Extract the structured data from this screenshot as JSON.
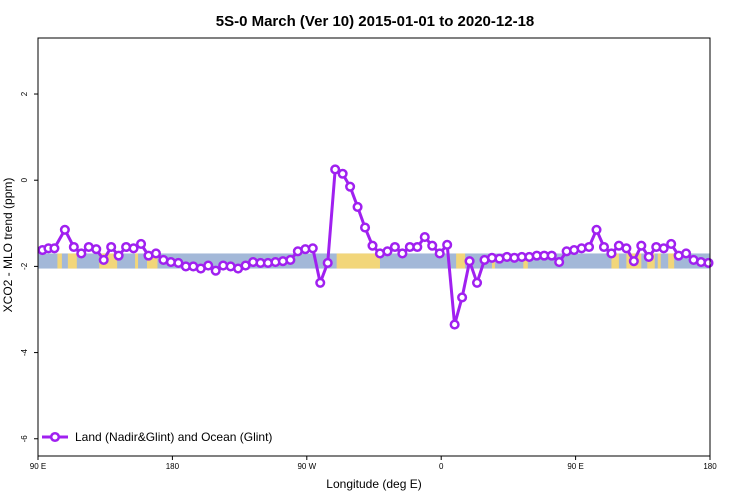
{
  "chart_data": {
    "type": "line",
    "title": "5S-0 March (Ver 10)   2015-01-01 to 2020-12-18",
    "xlabel": "Longitude (deg E)",
    "ylabel": "XCO2 - MLO trend (ppm)",
    "xlim": [
      90,
      540
    ],
    "ylim": [
      -6.4,
      3.3
    ],
    "x_ticks": [
      {
        "value": 90,
        "label": "90 E"
      },
      {
        "value": 180,
        "label": "180"
      },
      {
        "value": 270,
        "label": "90 W"
      },
      {
        "value": 360,
        "label": "0"
      },
      {
        "value": 450,
        "label": "90 E"
      },
      {
        "value": 540,
        "label": "180"
      }
    ],
    "y_ticks": [
      {
        "value": 2,
        "label": "2"
      },
      {
        "value": 0,
        "label": "0"
      },
      {
        "value": -2,
        "label": "-2"
      },
      {
        "value": -4,
        "label": "-4"
      },
      {
        "value": -6,
        "label": "-6"
      }
    ],
    "legend": "bottom-left",
    "background_band": {
      "ymin": -2.05,
      "ymax": -1.7,
      "ocean_color": "#a3b8d8",
      "land_color": "#f2d67a",
      "land_spans": [
        [
          103,
          106
        ],
        [
          110,
          116
        ],
        [
          131,
          143
        ],
        [
          155,
          157
        ],
        [
          163,
          170
        ],
        [
          290,
          319
        ],
        [
          370,
          376
        ],
        [
          394,
          396
        ],
        [
          415,
          418
        ],
        [
          474,
          479
        ],
        [
          484,
          494
        ],
        [
          498,
          503
        ],
        [
          505,
          507
        ],
        [
          512,
          516
        ]
      ]
    },
    "series": [
      {
        "name": "Land (Nadir&Glint) and Ocean (Glint)",
        "color": "#a020f0",
        "x": [
          93,
          97,
          101,
          108,
          114,
          119,
          124,
          129,
          134,
          139,
          144,
          149,
          154,
          159,
          164,
          169,
          174,
          179,
          184,
          189,
          194,
          199,
          204,
          209,
          214,
          219,
          224,
          229,
          234,
          239,
          244,
          249,
          254,
          259,
          264,
          269,
          274,
          279,
          284,
          289,
          294,
          299,
          304,
          309,
          314,
          319,
          324,
          329,
          334,
          339,
          344,
          349,
          354,
          359,
          364,
          369,
          374,
          379,
          384,
          389,
          394,
          399,
          404,
          409,
          414,
          419,
          424,
          429,
          434,
          439,
          444,
          449,
          454,
          459,
          464,
          469,
          474,
          479,
          484,
          489,
          494,
          499,
          504,
          509,
          514,
          519,
          524,
          529,
          534,
          539
        ],
        "y": [
          -1.62,
          -1.58,
          -1.58,
          -1.15,
          -1.55,
          -1.7,
          -1.55,
          -1.6,
          -1.85,
          -1.55,
          -1.75,
          -1.55,
          -1.58,
          -1.48,
          -1.75,
          -1.7,
          -1.85,
          -1.9,
          -1.92,
          -2.0,
          -2.0,
          -2.05,
          -1.98,
          -2.1,
          -1.98,
          -2.0,
          -2.05,
          -1.98,
          -1.9,
          -1.92,
          -1.92,
          -1.9,
          -1.88,
          -1.85,
          -1.65,
          -1.6,
          -1.58,
          -2.38,
          -1.92,
          0.25,
          0.15,
          -0.15,
          -0.62,
          -1.1,
          -1.52,
          -1.7,
          -1.65,
          -1.55,
          -1.7,
          -1.55,
          -1.55,
          -1.32,
          -1.52,
          -1.7,
          -1.5,
          -3.35,
          -2.72,
          -1.88,
          -2.38,
          -1.85,
          -1.8,
          -1.82,
          -1.78,
          -1.8,
          -1.78,
          -1.78,
          -1.75,
          -1.75,
          -1.75,
          -1.9,
          -1.65,
          -1.62,
          -1.58,
          -1.55,
          -1.15,
          -1.55,
          -1.7,
          -1.52,
          -1.58,
          -1.88,
          -1.52,
          -1.78,
          -1.55,
          -1.58,
          -1.48,
          -1.75,
          -1.7,
          -1.85,
          -1.9,
          -1.92
        ]
      }
    ]
  }
}
